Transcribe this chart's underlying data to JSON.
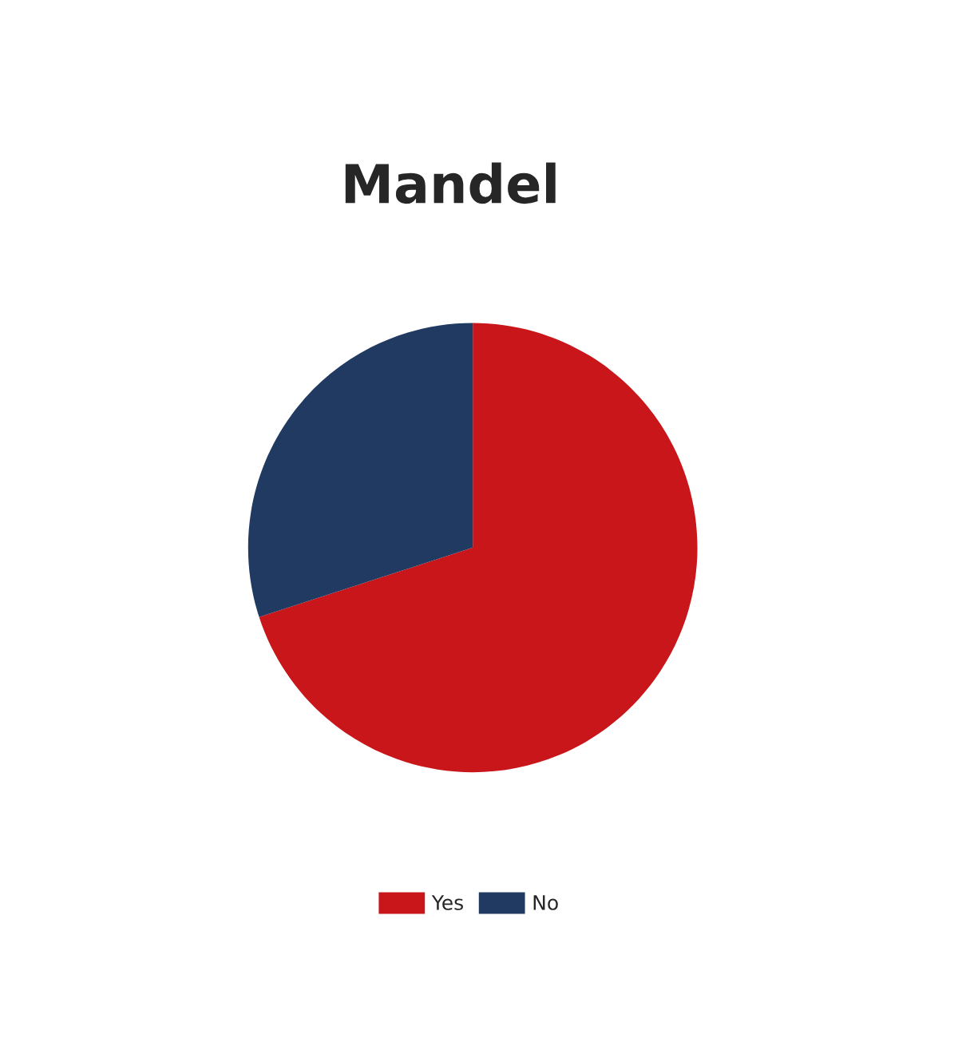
{
  "chart_data": {
    "type": "pie",
    "title": "Mandel",
    "categories": [
      "Yes",
      "No"
    ],
    "values": [
      70,
      30
    ],
    "colors": [
      "#c8161a",
      "#213a62"
    ],
    "legend": "bottom"
  }
}
